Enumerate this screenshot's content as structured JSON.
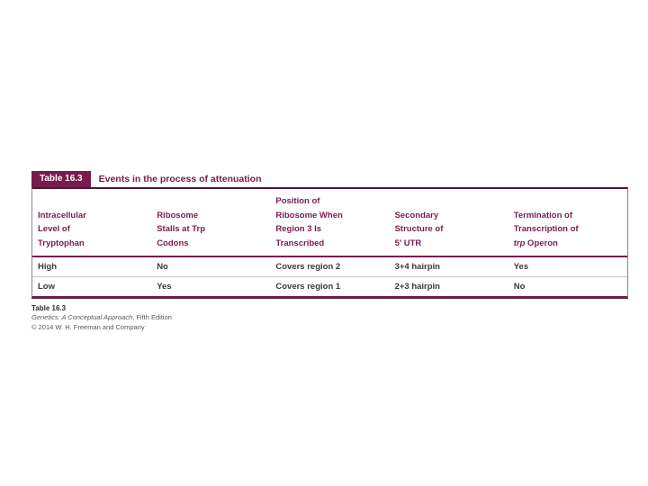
{
  "colors": {
    "maroon": "#771c4d",
    "header_rule": "#4d1a38",
    "side_border": "#8e8490",
    "bottom_border": "#6b1d45",
    "row_divider": "#c3c3c3",
    "data_text": "#3a3a3a",
    "caption_text": "#58585a"
  },
  "table": {
    "label": "Table 16.3",
    "title": "Events in the process of attenuation",
    "columns": [
      {
        "id": "intracellular-level-of-tryptophan",
        "lines": [
          "Intracellular",
          "Level of",
          "Tryptophan"
        ]
      },
      {
        "id": "ribosome-stalls-at-trp-codons",
        "lines": [
          "Ribosome",
          "Stalls at Trp",
          "Codons"
        ]
      },
      {
        "id": "position-of-ribosome-when-region-3-is-transcribed",
        "lines": [
          "Position of",
          "Ribosome When",
          "Region 3 Is",
          "Transcribed"
        ]
      },
      {
        "id": "secondary-structure-of-5-utr",
        "lines": [
          "Secondary",
          "Structure of",
          "5′ UTR"
        ]
      },
      {
        "id": "termination-of-transcription-of-trp-operon",
        "lines": [
          "Termination of",
          "Transcription of",
          {
            "segments": [
              {
                "text": "trp",
                "italic": true
              },
              {
                "text": " Operon",
                "italic": false
              }
            ]
          }
        ]
      }
    ],
    "rows": [
      {
        "cells": [
          "High",
          "No",
          "Covers region 2",
          "3+4 hairpin",
          "Yes"
        ]
      },
      {
        "cells": [
          "Low",
          "Yes",
          "Covers region 1",
          "2+3 hairpin",
          "No"
        ]
      }
    ]
  },
  "caption": {
    "label": "Table 16.3",
    "source_italic": "Genetics: A Conceptual Approach",
    "source_rest": ", Fifth Edition",
    "copyright": "© 2014 W. H. Freeman and Company"
  }
}
